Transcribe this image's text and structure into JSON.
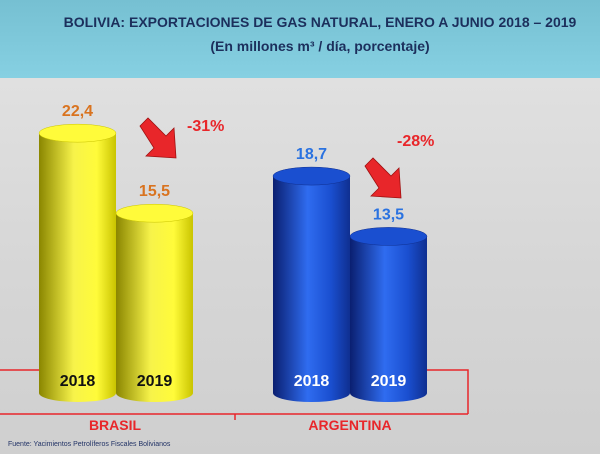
{
  "chart_data": {
    "type": "bar",
    "title": "BOLIVIA: EXPORTACIONES DE GAS NATURAL, ENERO A JUNIO 2018 – 2019",
    "subtitle": "(En millones m³ / día, porcentaje)",
    "groups": [
      {
        "name": "BRASIL",
        "color": "#f2ee00",
        "label_color": "#d9731f",
        "change": "-31%",
        "bars": [
          {
            "year": "2018",
            "value": 22.4,
            "label": "22,4"
          },
          {
            "year": "2019",
            "value": 15.5,
            "label": "15,5"
          }
        ]
      },
      {
        "name": "ARGENTINA",
        "color": "#1a4fd0",
        "label_color": "#2a72e0",
        "change": "-28%",
        "bars": [
          {
            "year": "2018",
            "value": 18.7,
            "label": "18,7"
          },
          {
            "year": "2019",
            "value": 13.5,
            "label": "13,5"
          }
        ]
      }
    ],
    "accent_color": "#e8262a"
  },
  "source": "Fuente: Yacimientos Petrolíferos Fiscales Bolivianos"
}
